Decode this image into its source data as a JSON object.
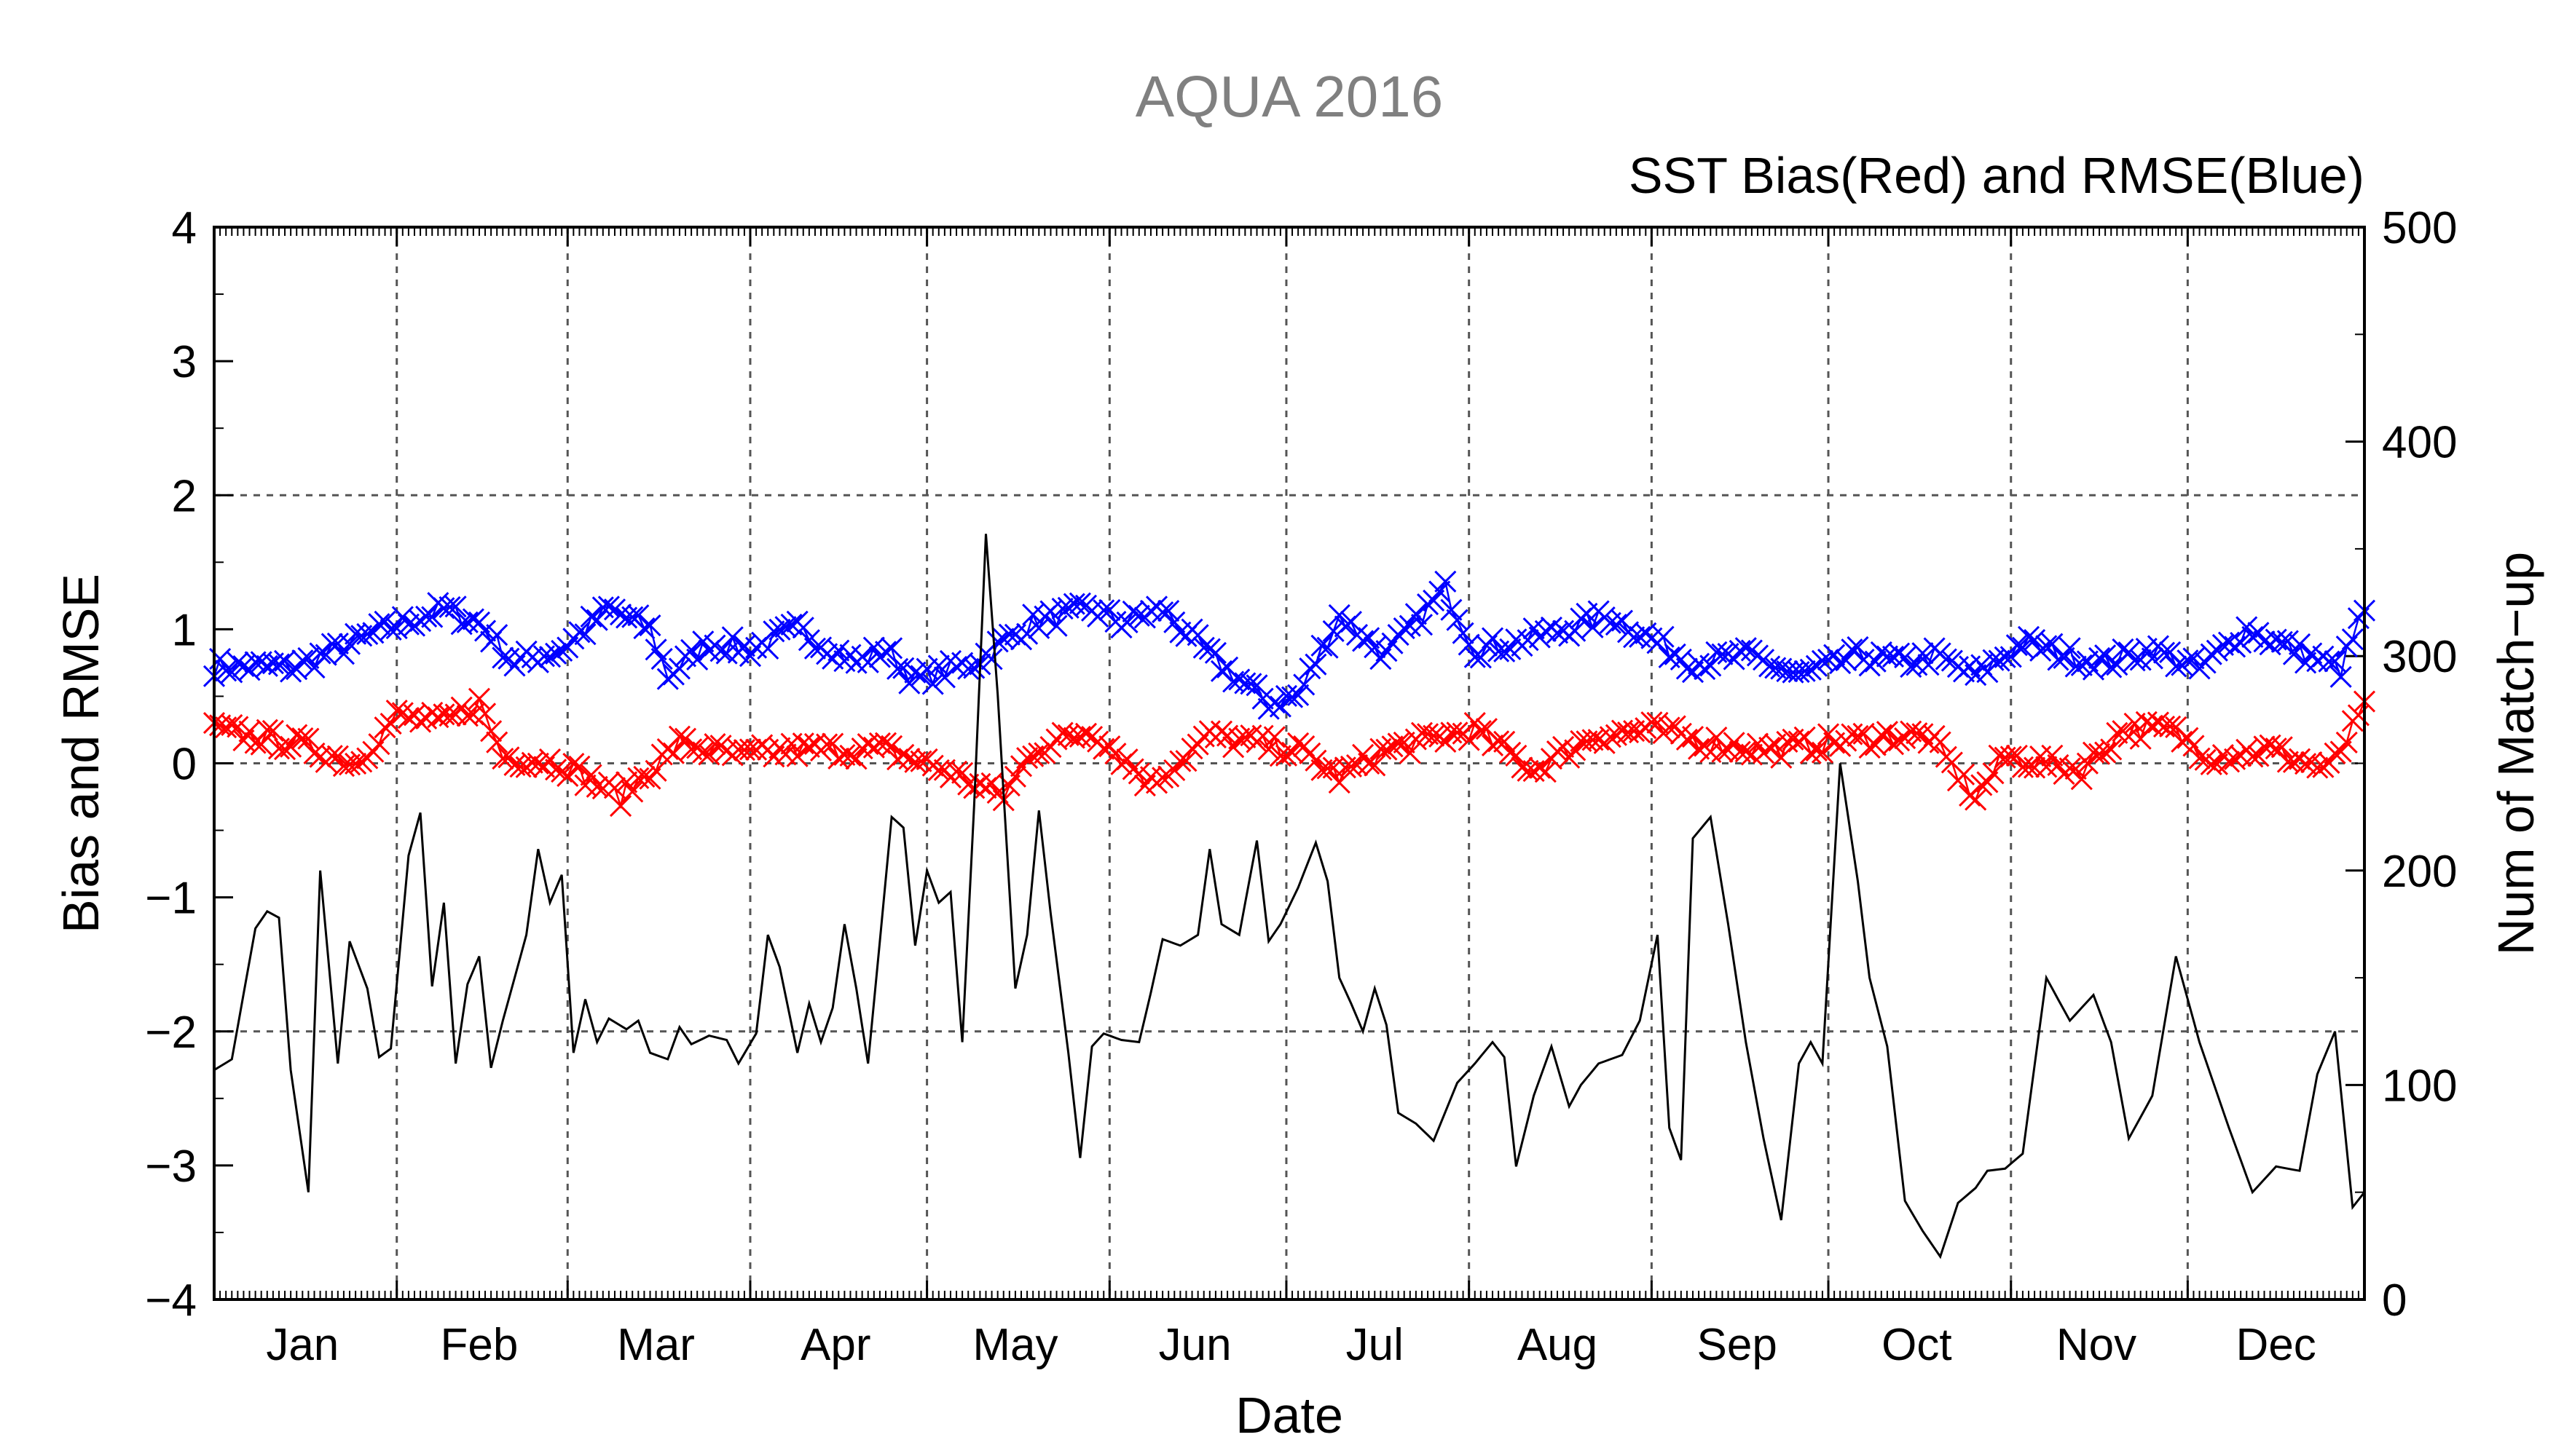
{
  "chart_data": {
    "type": "line",
    "title": "AQUA 2016",
    "subtitle": "SST Bias(Red) and RMSE(Blue)",
    "xlabel": "Date",
    "ylabel": "Bias and RMSE",
    "y2label": "Num of Match−up",
    "months": [
      "Jan",
      "Feb",
      "Mar",
      "Apr",
      "May",
      "Jun",
      "Jul",
      "Aug",
      "Sep",
      "Oct",
      "Nov",
      "Dec"
    ],
    "ylim": [
      -4,
      4
    ],
    "y2lim": [
      0,
      500
    ],
    "yticks": [
      "−4",
      "−3",
      "−2",
      "−1",
      "0",
      "1",
      "2",
      "3",
      "4"
    ],
    "y2ticks": [
      "0",
      "100",
      "200",
      "300",
      "400",
      "500"
    ],
    "grid": true,
    "colors": {
      "bias": "#ff0000",
      "rmse": "#0000ff",
      "matchups": "#000000",
      "title": "#808080"
    },
    "days_in_year": 366,
    "series": [
      {
        "name": "RMSE",
        "axis": "left",
        "marker": "x",
        "color": "#0000ff",
        "x_day": [
          1,
          15,
          30,
          40,
          46,
          52,
          60,
          68,
          75,
          78,
          85,
          92,
          100,
          110,
          115,
          120,
          130,
          140,
          150,
          155,
          162,
          170,
          180,
          185,
          192,
          200,
          210,
          215,
          222,
          230,
          238,
          246,
          252,
          262,
          270,
          280,
          288,
          293,
          300,
          308,
          316,
          322,
          330,
          338,
          346,
          354,
          362,
          366
        ],
        "y": [
          0.72,
          0.72,
          1.0,
          1.15,
          1.05,
          0.75,
          0.85,
          1.15,
          1.0,
          0.65,
          0.9,
          0.85,
          1.0,
          0.75,
          0.85,
          0.62,
          0.75,
          1.05,
          1.15,
          1.05,
          1.15,
          0.8,
          0.45,
          0.5,
          1.1,
          0.8,
          1.3,
          0.85,
          0.9,
          1.0,
          1.1,
          0.9,
          0.75,
          0.8,
          0.65,
          0.8,
          0.75,
          0.8,
          0.65,
          0.9,
          0.8,
          0.75,
          0.85,
          0.7,
          1.0,
          0.85,
          0.7,
          1.15
        ]
      },
      {
        "name": "Bias",
        "axis": "left",
        "marker": "x",
        "color": "#ff0000",
        "x_day": [
          1,
          15,
          25,
          32,
          40,
          46,
          50,
          60,
          70,
          80,
          90,
          100,
          115,
          125,
          135,
          140,
          150,
          160,
          170,
          185,
          192,
          200,
          215,
          225,
          235,
          245,
          255,
          265,
          275,
          285,
          292,
          300,
          305,
          318,
          325,
          333,
          340,
          350,
          360,
          366
        ],
        "y": [
          0.25,
          0.15,
          0.0,
          0.35,
          0.3,
          0.45,
          0.05,
          0.0,
          -0.25,
          0.15,
          0.05,
          0.1,
          0.1,
          -0.05,
          -0.25,
          0.1,
          0.25,
          -0.15,
          0.2,
          0.1,
          -0.1,
          0.1,
          0.25,
          -0.05,
          0.2,
          0.25,
          0.15,
          0.1,
          0.15,
          0.2,
          0.2,
          -0.25,
          0.05,
          -0.05,
          0.25,
          0.25,
          0.05,
          0.1,
          -0.05,
          0.4
        ]
      },
      {
        "name": "Num of Match-up",
        "axis": "right",
        "marker": "none",
        "color": "#000000",
        "x_day": [
          1,
          4,
          8,
          10,
          12,
          14,
          17,
          19,
          22,
          24,
          27,
          29,
          31,
          34,
          36,
          38,
          40,
          42,
          44,
          46,
          48,
          50,
          52,
          54,
          56,
          58,
          60,
          62,
          64,
          66,
          68,
          71,
          73,
          75,
          78,
          80,
          82,
          85,
          88,
          90,
          93,
          95,
          97,
          100,
          102,
          104,
          106,
          108,
          110,
          112,
          114,
          116,
          118,
          120,
          122,
          124,
          126,
          128,
          130,
          132,
          134,
          137,
          139,
          141,
          143,
          146,
          148,
          150,
          152,
          155,
          158,
          160,
          162,
          165,
          168,
          170,
          172,
          175,
          178,
          180,
          182,
          185,
          188,
          190,
          192,
          194,
          196,
          198,
          200,
          202,
          205,
          208,
          212,
          215,
          218,
          220,
          222,
          225,
          228,
          231,
          233,
          236,
          240,
          243,
          246,
          248,
          250,
          252,
          255,
          258,
          261,
          264,
          267,
          270,
          272,
          274,
          277,
          280,
          282,
          285,
          288,
          291,
          294,
          297,
          300,
          302,
          305,
          308,
          312,
          316,
          320,
          323,
          326,
          330,
          334,
          338,
          343,
          347,
          351,
          355,
          358,
          361,
          364,
          366
        ],
        "y": [
          107,
          112,
          173,
          181,
          178,
          107,
          50,
          200,
          110,
          167,
          145,
          113,
          117,
          207,
          227,
          146,
          185,
          110,
          147,
          160,
          108,
          130,
          150,
          170,
          210,
          185,
          198,
          115,
          140,
          120,
          131,
          126,
          130,
          115,
          112,
          127,
          119,
          123,
          121,
          110,
          124,
          170,
          155,
          115,
          138,
          120,
          136,
          175,
          145,
          110,
          167,
          225,
          220,
          165,
          200,
          185,
          190,
          120,
          230,
          357,
          282,
          145,
          170,
          228,
          180,
          115,
          66,
          118,
          124,
          121,
          120,
          143,
          168,
          165,
          170,
          210,
          175,
          170,
          214,
          167,
          175,
          192,
          213,
          195,
          150,
          138,
          125,
          145,
          128,
          87,
          82,
          74,
          101,
          110,
          120,
          113,
          62,
          95,
          118,
          90,
          100,
          110,
          114,
          130,
          170,
          80,
          65,
          215,
          225,
          175,
          120,
          75,
          37,
          110,
          120,
          110,
          250,
          195,
          150,
          118,
          46,
          32,
          20,
          45,
          52,
          60,
          61,
          68,
          150,
          130,
          142,
          120,
          75,
          95,
          160,
          120,
          80,
          50,
          62,
          60,
          105,
          125,
          43,
          50
        ]
      }
    ]
  }
}
